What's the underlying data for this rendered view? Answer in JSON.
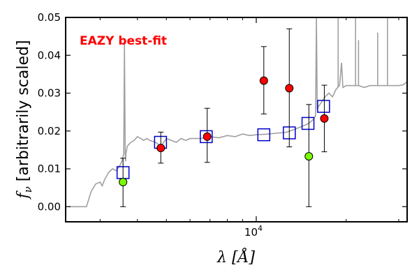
{
  "chart_data": {
    "type": "scatter",
    "annotation": "EAZY best-fit",
    "annotation_color": "#ff0000",
    "ylabel_text": "[arbitrarily scaled]",
    "ylabel_symbol": "f",
    "ylabel_sub": "ν",
    "xlabel_symbol": "λ",
    "xlabel_unit": "[Å]",
    "x_tick_base": "10",
    "x_tick_exp": "4",
    "x_scale": "log",
    "xlim": [
      2300,
      32000
    ],
    "ylim": [
      -0.004,
      0.05
    ],
    "y_ticks": [
      0.0,
      0.01,
      0.02,
      0.03,
      0.04,
      0.05
    ],
    "y_tick_labels": [
      "0.00",
      "0.01",
      "0.02",
      "0.03",
      "0.04",
      "0.05"
    ],
    "x_major_ticks": [
      10000
    ],
    "x_minor_ticks": [
      3000,
      4000,
      5000,
      6000,
      7000,
      8000,
      9000,
      20000,
      30000
    ],
    "colors": {
      "sed": "#a0a0a0",
      "model": "#0000cc",
      "detected": "#ff0000",
      "limit": "#7cfc00",
      "errorbar": "#000000"
    },
    "sed_line": {
      "x": [
        2350,
        2700,
        2800,
        2900,
        3000,
        3050,
        3100,
        3150,
        3200,
        3300,
        3400,
        3500,
        3550,
        3600,
        3620,
        3640,
        3650,
        3660,
        3700,
        3800,
        3900,
        4000,
        4100,
        4200,
        4300,
        4400,
        4600,
        4800,
        5000,
        5200,
        5400,
        5600,
        5800,
        6000,
        6500,
        7000,
        7500,
        8000,
        8500,
        9000,
        9500,
        10000,
        11000,
        12000,
        12500,
        13000,
        13500,
        14000,
        14500,
        15000,
        15500,
        15800,
        15900,
        16000,
        16500,
        17000,
        17500,
        18000,
        18500,
        19000,
        19300,
        19500,
        20000,
        21000,
        22000,
        23000,
        24000,
        25000,
        26000,
        27000,
        28000,
        29000,
        30000,
        31000,
        32000
      ],
      "y": [
        0.0,
        0.0,
        0.004,
        0.006,
        0.0065,
        0.0055,
        0.007,
        0.008,
        0.009,
        0.01,
        0.0095,
        0.011,
        0.012,
        0.014,
        0.043,
        0.014,
        0.012,
        0.014,
        0.016,
        0.017,
        0.0175,
        0.0185,
        0.018,
        0.0175,
        0.018,
        0.0175,
        0.017,
        0.016,
        0.018,
        0.0175,
        0.017,
        0.018,
        0.0175,
        0.018,
        0.018,
        0.0185,
        0.0182,
        0.0188,
        0.0185,
        0.0192,
        0.0188,
        0.019,
        0.0192,
        0.0195,
        0.0196,
        0.02,
        0.0205,
        0.021,
        0.0215,
        0.022,
        0.023,
        0.024,
        0.05,
        0.026,
        0.0275,
        0.029,
        0.03,
        0.029,
        0.031,
        0.032,
        0.038,
        0.0315,
        0.032,
        0.032,
        0.032,
        0.0315,
        0.032,
        0.032,
        0.032,
        0.032,
        0.032,
        0.032,
        0.032,
        0.0322,
        0.033
      ]
    },
    "sed_spikes": [
      {
        "x": 18800,
        "top": 0.05
      },
      {
        "x": 21500,
        "top": 0.05
      },
      {
        "x": 22000,
        "top": 0.044
      },
      {
        "x": 25500,
        "top": 0.046
      },
      {
        "x": 27500,
        "top": 0.05
      }
    ],
    "model_points": {
      "x": [
        3580,
        4780,
        6800,
        10600,
        12900,
        14900,
        16800
      ],
      "y": [
        0.009,
        0.017,
        0.0185,
        0.019,
        0.0195,
        0.022,
        0.0265
      ]
    },
    "observed_points": [
      {
        "x": 3580,
        "y": 0.0065,
        "err_lo": 0.0065,
        "err_hi": 0.0063,
        "type": "limit"
      },
      {
        "x": 4790,
        "y": 0.0155,
        "err_lo": 0.004,
        "err_hi": 0.0042,
        "type": "detected"
      },
      {
        "x": 6850,
        "y": 0.0185,
        "err_lo": 0.0068,
        "err_hi": 0.0075,
        "type": "detected"
      },
      {
        "x": 10600,
        "y": 0.0333,
        "err_lo": 0.0088,
        "err_hi": 0.009,
        "type": "detected"
      },
      {
        "x": 12900,
        "y": 0.0313,
        "err_lo": 0.0155,
        "err_hi": 0.0157,
        "type": "detected"
      },
      {
        "x": 15000,
        "y": 0.0133,
        "err_lo": 0.0133,
        "err_hi": 0.0137,
        "type": "limit"
      },
      {
        "x": 16900,
        "y": 0.0233,
        "err_lo": 0.0088,
        "err_hi": 0.0088,
        "type": "detected"
      }
    ]
  }
}
